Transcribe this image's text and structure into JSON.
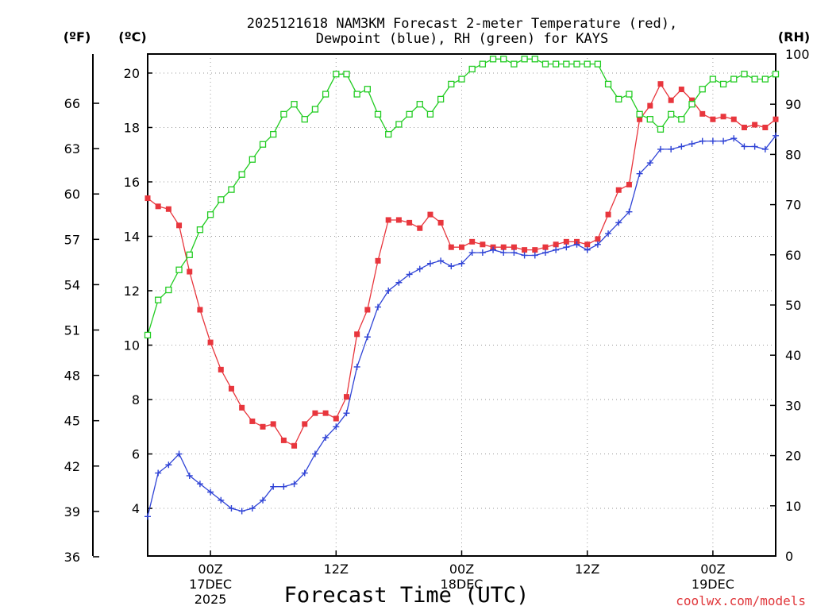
{
  "chart_data": {
    "type": "line",
    "title_line1": "2025121618 NAM3KM Forecast 2-meter Temperature (red),",
    "title_line2": "Dewpoint (blue), RH (green) for KAYS",
    "xlabel": "Forecast Time (UTC)",
    "credit": "coolwx.com/models",
    "units": {
      "fahrenheit": "(ºF)",
      "celsius": "(ºC)",
      "rh": "(RH)"
    },
    "x_range_hours": [
      0,
      60
    ],
    "x_ticks": [
      {
        "hour": 6,
        "label": "00Z",
        "sub1": "17DEC",
        "sub2": "2025"
      },
      {
        "hour": 18,
        "label": "12Z",
        "sub1": "",
        "sub2": ""
      },
      {
        "hour": 30,
        "label": "00Z",
        "sub1": "18DEC",
        "sub2": ""
      },
      {
        "hour": 42,
        "label": "12Z",
        "sub1": "",
        "sub2": ""
      },
      {
        "hour": 54,
        "label": "00Z",
        "sub1": "19DEC",
        "sub2": ""
      }
    ],
    "celsius_axis": {
      "range": [
        2.25,
        20.7
      ],
      "ticks": [
        "4",
        "6",
        "8",
        "10",
        "12",
        "14",
        "16",
        "18",
        "20"
      ]
    },
    "fahrenheit_axis": {
      "ticks": [
        "36",
        "39",
        "42",
        "45",
        "48",
        "51",
        "54",
        "57",
        "60",
        "63",
        "66"
      ]
    },
    "rh_axis": {
      "range": [
        0,
        100
      ],
      "ticks": [
        "0",
        "10",
        "20",
        "30",
        "40",
        "50",
        "60",
        "70",
        "80",
        "90",
        "100"
      ]
    },
    "series": [
      {
        "name": "Temperature",
        "unit": "C",
        "color": "#e8363d",
        "marker": "filled-square",
        "values": [
          15.4,
          15.1,
          15.0,
          14.4,
          12.7,
          11.3,
          10.1,
          9.1,
          8.4,
          7.7,
          7.2,
          7.0,
          7.1,
          6.5,
          6.3,
          7.1,
          7.5,
          7.5,
          7.3,
          8.1,
          10.4,
          11.3,
          13.1,
          14.6,
          14.6,
          14.5,
          14.3,
          14.8,
          14.5,
          13.6,
          13.6,
          13.8,
          13.7,
          13.6,
          13.6,
          13.6,
          13.5,
          13.5,
          13.6,
          13.7,
          13.8,
          13.8,
          13.7,
          13.9,
          14.8,
          15.7,
          15.9,
          18.3,
          18.8,
          19.6,
          19.0,
          19.4,
          19.0,
          18.5,
          18.3,
          18.4,
          18.3,
          18.0,
          18.1,
          18.0,
          18.3
        ]
      },
      {
        "name": "Dewpoint",
        "unit": "C",
        "color": "#2f43d6",
        "marker": "plus",
        "values": [
          3.7,
          5.3,
          5.6,
          6.0,
          5.2,
          4.9,
          4.6,
          4.3,
          4.0,
          3.9,
          4.0,
          4.3,
          4.8,
          4.8,
          4.9,
          5.3,
          6.0,
          6.6,
          7.0,
          7.5,
          9.2,
          10.3,
          11.4,
          12.0,
          12.3,
          12.6,
          12.8,
          13.0,
          13.1,
          12.9,
          13.0,
          13.4,
          13.4,
          13.5,
          13.4,
          13.4,
          13.3,
          13.3,
          13.4,
          13.5,
          13.6,
          13.7,
          13.5,
          13.7,
          14.1,
          14.5,
          14.9,
          16.3,
          16.7,
          17.2,
          17.2,
          17.3,
          17.4,
          17.5,
          17.5,
          17.5,
          17.6,
          17.3,
          17.3,
          17.2,
          17.7
        ]
      },
      {
        "name": "RH",
        "unit": "%",
        "color": "#22cc22",
        "marker": "open-square",
        "values": [
          44,
          51,
          53,
          57,
          60,
          65,
          68,
          71,
          73,
          76,
          79,
          82,
          84,
          88,
          90,
          87,
          89,
          92,
          96,
          96,
          92,
          93,
          88,
          84,
          86,
          88,
          90,
          88,
          91,
          94,
          95,
          97,
          98,
          99,
          99,
          98,
          99,
          99,
          98,
          98,
          98,
          98,
          98,
          98,
          94,
          91,
          92,
          88,
          87,
          85,
          88,
          87,
          90,
          93,
          95,
          94,
          95,
          96,
          95,
          95,
          96
        ]
      }
    ]
  }
}
